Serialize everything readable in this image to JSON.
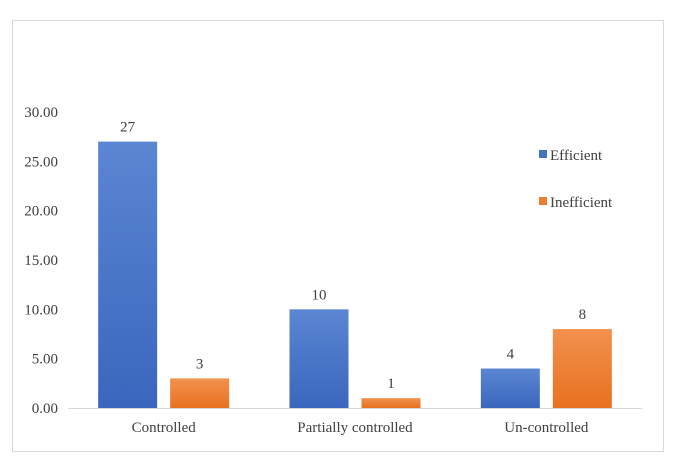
{
  "chart_data": {
    "type": "bar",
    "categories": [
      "Controlled",
      "Partially controlled",
      "Un-controlled"
    ],
    "series": [
      {
        "name": "Efficient",
        "values": [
          27,
          10,
          4
        ],
        "color": "#4472c4"
      },
      {
        "name": "Inefficient",
        "values": [
          3,
          1,
          8
        ],
        "color": "#ed7d31"
      }
    ],
    "y_ticks": [
      "0.00",
      "5.00",
      "10.00",
      "15.00",
      "20.00",
      "25.00",
      "30.00"
    ],
    "ylim": [
      0,
      30
    ],
    "grid": false,
    "legend_position": "right",
    "data_labels": true
  }
}
